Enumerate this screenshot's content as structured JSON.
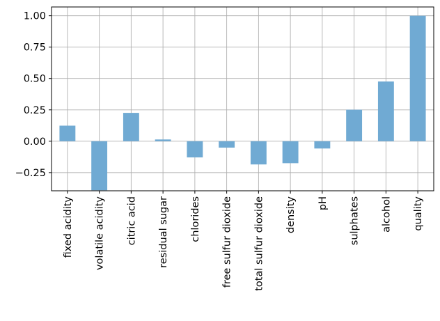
{
  "chart_data": {
    "type": "bar",
    "categories": [
      "fixed acidity",
      "volatile acidity",
      "citric acid",
      "residual sugar",
      "chlorides",
      "free sulfur dioxide",
      "total sulfur dioxide",
      "density",
      "pH",
      "sulphates",
      "alcohol",
      "quality"
    ],
    "values": [
      0.124,
      -0.391,
      0.226,
      0.014,
      -0.129,
      -0.051,
      -0.185,
      -0.175,
      -0.058,
      0.251,
      0.476,
      1.0
    ],
    "title": "",
    "xlabel": "",
    "ylabel": "",
    "ylim": [
      -0.395,
      1.07
    ],
    "yticks": [
      -0.25,
      0.0,
      0.25,
      0.5,
      0.75,
      1.0
    ],
    "ytick_labels": [
      "−0.25",
      "0.00",
      "0.25",
      "0.50",
      "0.75",
      "1.00"
    ],
    "grid": true,
    "legend": "none",
    "bar_color": "#70aad3"
  }
}
